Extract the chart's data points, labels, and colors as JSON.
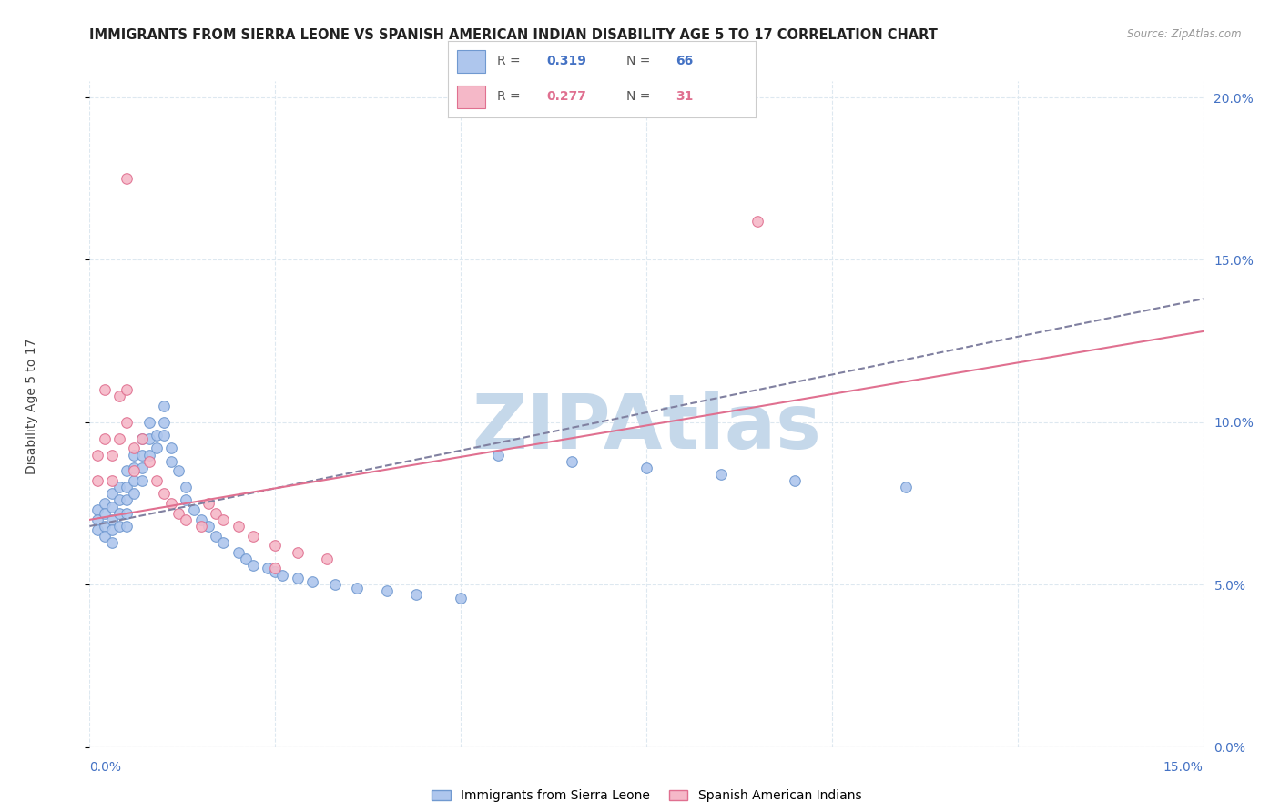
{
  "title": "IMMIGRANTS FROM SIERRA LEONE VS SPANISH AMERICAN INDIAN DISABILITY AGE 5 TO 17 CORRELATION CHART",
  "source": "Source: ZipAtlas.com",
  "series1_label": "Immigrants from Sierra Leone",
  "series2_label": "Spanish American Indians",
  "series1_r": "0.319",
  "series1_n": "66",
  "series2_r": "0.277",
  "series2_n": "31",
  "series1_color": "#aec6ed",
  "series2_color": "#f5b8c8",
  "series1_edge_color": "#7099d0",
  "series2_edge_color": "#e07090",
  "series1_line_color": "#8080a0",
  "series2_line_color": "#e07090",
  "watermark": "ZIPAtlas",
  "watermark_color": "#c5d8ea",
  "xmin": 0.0,
  "xmax": 0.15,
  "ymin": 0.0,
  "ymax": 0.205,
  "series1_x": [
    0.001,
    0.001,
    0.001,
    0.002,
    0.002,
    0.002,
    0.002,
    0.003,
    0.003,
    0.003,
    0.003,
    0.003,
    0.004,
    0.004,
    0.004,
    0.004,
    0.005,
    0.005,
    0.005,
    0.005,
    0.005,
    0.006,
    0.006,
    0.006,
    0.006,
    0.007,
    0.007,
    0.007,
    0.007,
    0.008,
    0.008,
    0.008,
    0.009,
    0.009,
    0.01,
    0.01,
    0.01,
    0.011,
    0.011,
    0.012,
    0.013,
    0.013,
    0.014,
    0.015,
    0.016,
    0.017,
    0.018,
    0.02,
    0.021,
    0.022,
    0.024,
    0.025,
    0.026,
    0.028,
    0.03,
    0.033,
    0.036,
    0.04,
    0.044,
    0.05,
    0.055,
    0.065,
    0.075,
    0.085,
    0.095,
    0.11
  ],
  "series1_y": [
    0.073,
    0.07,
    0.067,
    0.075,
    0.072,
    0.068,
    0.065,
    0.078,
    0.074,
    0.07,
    0.067,
    0.063,
    0.08,
    0.076,
    0.072,
    0.068,
    0.085,
    0.08,
    0.076,
    0.072,
    0.068,
    0.09,
    0.086,
    0.082,
    0.078,
    0.095,
    0.09,
    0.086,
    0.082,
    0.1,
    0.095,
    0.09,
    0.096,
    0.092,
    0.105,
    0.1,
    0.096,
    0.092,
    0.088,
    0.085,
    0.08,
    0.076,
    0.073,
    0.07,
    0.068,
    0.065,
    0.063,
    0.06,
    0.058,
    0.056,
    0.055,
    0.054,
    0.053,
    0.052,
    0.051,
    0.05,
    0.049,
    0.048,
    0.047,
    0.046,
    0.09,
    0.088,
    0.086,
    0.084,
    0.082,
    0.08
  ],
  "series2_x": [
    0.001,
    0.001,
    0.002,
    0.002,
    0.003,
    0.003,
    0.004,
    0.004,
    0.005,
    0.005,
    0.006,
    0.006,
    0.007,
    0.008,
    0.009,
    0.01,
    0.011,
    0.012,
    0.013,
    0.015,
    0.016,
    0.017,
    0.018,
    0.02,
    0.022,
    0.025,
    0.028,
    0.032,
    0.09,
    0.005,
    0.025
  ],
  "series2_y": [
    0.09,
    0.082,
    0.11,
    0.095,
    0.09,
    0.082,
    0.108,
    0.095,
    0.11,
    0.1,
    0.092,
    0.085,
    0.095,
    0.088,
    0.082,
    0.078,
    0.075,
    0.072,
    0.07,
    0.068,
    0.075,
    0.072,
    0.07,
    0.068,
    0.065,
    0.062,
    0.06,
    0.058,
    0.162,
    0.175,
    0.055
  ],
  "trend1_x": [
    0.0,
    0.15
  ],
  "trend1_y": [
    0.068,
    0.138
  ],
  "trend2_x": [
    0.0,
    0.15
  ],
  "trend2_y": [
    0.07,
    0.128
  ],
  "grid_color": "#dde8f0",
  "yticks": [
    0.0,
    0.05,
    0.1,
    0.15,
    0.2
  ],
  "xticks": [
    0.0,
    0.025,
    0.05,
    0.075,
    0.1,
    0.125,
    0.15
  ],
  "title_fontsize": 10.5,
  "axis_label_fontsize": 10,
  "tick_label_fontsize": 10
}
